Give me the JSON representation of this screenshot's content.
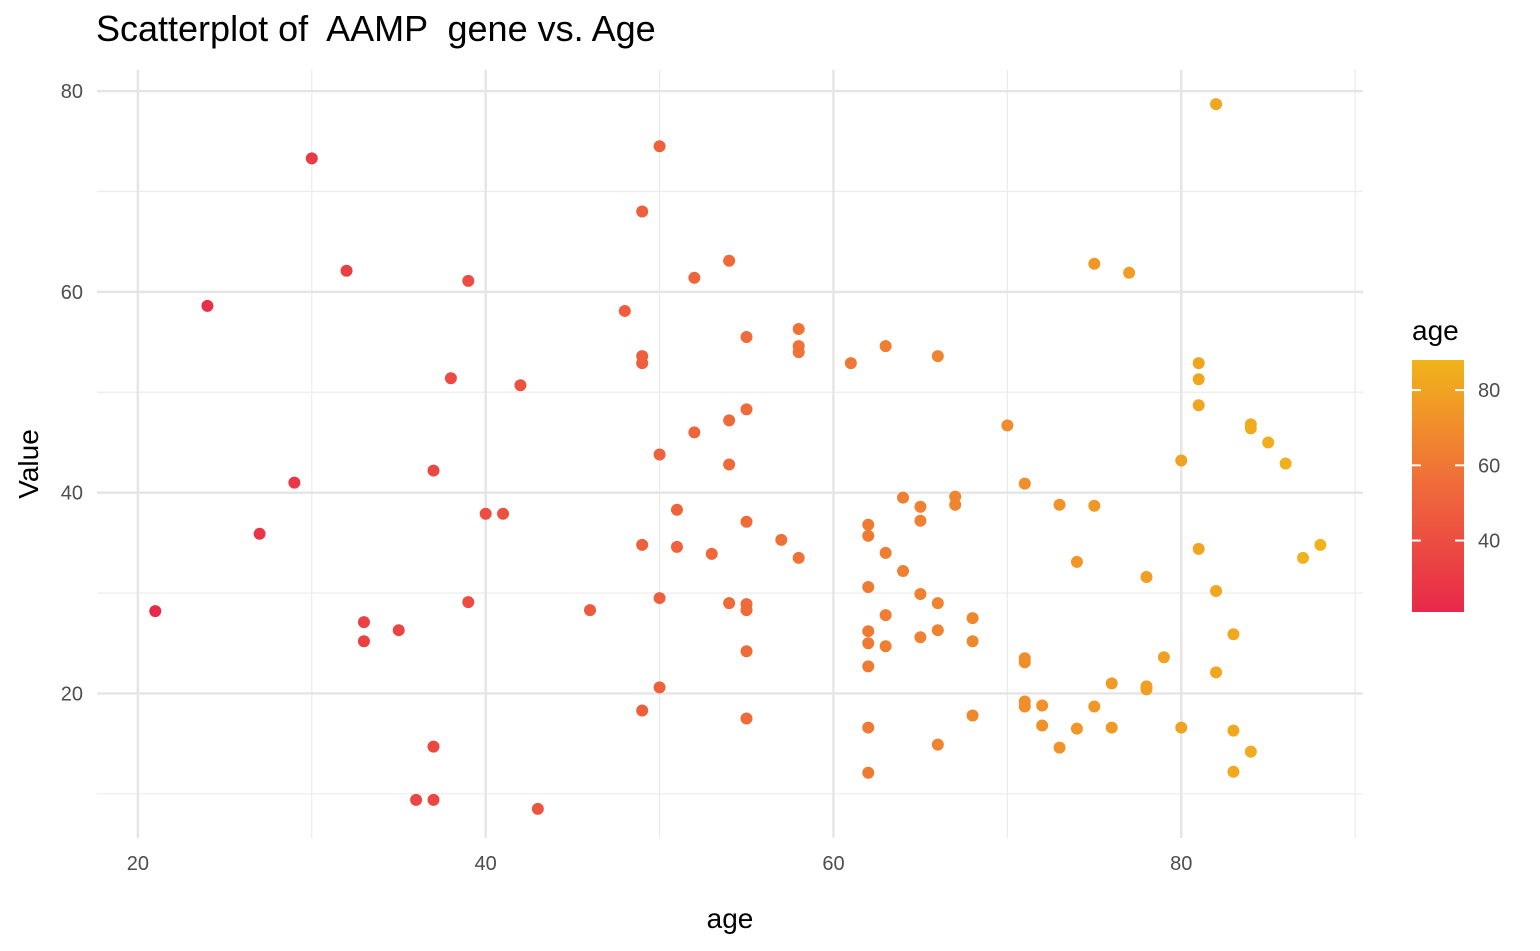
{
  "chart_data": {
    "type": "scatter",
    "title": "Scatterplot of  AAMP  gene vs. Age",
    "xlabel": "age",
    "ylabel": "Value",
    "xlim": [
      17.65,
      90.45
    ],
    "ylim": [
      5.6,
      82.1
    ],
    "x_ticks": [
      20,
      40,
      60,
      80
    ],
    "y_ticks": [
      20,
      40,
      60,
      80
    ],
    "x_minor": [
      30,
      50,
      70,
      90
    ],
    "y_minor": [
      10,
      30,
      50,
      70
    ],
    "grid": true,
    "legend": {
      "title": "age",
      "position": "right",
      "ticks": [
        40,
        60,
        80
      ],
      "range": [
        21,
        88
      ],
      "color_low": "#e8294a",
      "color_high": "#f0b41a"
    },
    "points": [
      {
        "x": 21,
        "y": 28.2
      },
      {
        "x": 24,
        "y": 58.6
      },
      {
        "x": 27,
        "y": 35.9
      },
      {
        "x": 29,
        "y": 41.0
      },
      {
        "x": 30,
        "y": 73.3
      },
      {
        "x": 32,
        "y": 62.1
      },
      {
        "x": 33,
        "y": 27.1
      },
      {
        "x": 33,
        "y": 25.2
      },
      {
        "x": 35,
        "y": 26.3
      },
      {
        "x": 36,
        "y": 9.4
      },
      {
        "x": 37,
        "y": 9.4
      },
      {
        "x": 37,
        "y": 14.7
      },
      {
        "x": 37,
        "y": 42.2
      },
      {
        "x": 38,
        "y": 51.4
      },
      {
        "x": 39,
        "y": 61.1
      },
      {
        "x": 39,
        "y": 29.1
      },
      {
        "x": 40,
        "y": 37.9
      },
      {
        "x": 41,
        "y": 37.9
      },
      {
        "x": 42,
        "y": 50.7
      },
      {
        "x": 43,
        "y": 8.5
      },
      {
        "x": 46,
        "y": 28.3
      },
      {
        "x": 48,
        "y": 58.1
      },
      {
        "x": 49,
        "y": 68.0
      },
      {
        "x": 49,
        "y": 53.6
      },
      {
        "x": 49,
        "y": 52.9
      },
      {
        "x": 49,
        "y": 34.8
      },
      {
        "x": 49,
        "y": 18.3
      },
      {
        "x": 50,
        "y": 74.5
      },
      {
        "x": 50,
        "y": 43.8
      },
      {
        "x": 50,
        "y": 29.5
      },
      {
        "x": 50,
        "y": 20.6
      },
      {
        "x": 51,
        "y": 38.3
      },
      {
        "x": 51,
        "y": 34.6
      },
      {
        "x": 52,
        "y": 61.4
      },
      {
        "x": 52,
        "y": 46.0
      },
      {
        "x": 53,
        "y": 33.9
      },
      {
        "x": 54,
        "y": 63.1
      },
      {
        "x": 54,
        "y": 47.2
      },
      {
        "x": 54,
        "y": 42.8
      },
      {
        "x": 54,
        "y": 29.0
      },
      {
        "x": 55,
        "y": 55.5
      },
      {
        "x": 55,
        "y": 48.3
      },
      {
        "x": 55,
        "y": 37.1
      },
      {
        "x": 55,
        "y": 28.9
      },
      {
        "x": 55,
        "y": 28.3
      },
      {
        "x": 55,
        "y": 24.2
      },
      {
        "x": 55,
        "y": 17.5
      },
      {
        "x": 57,
        "y": 35.3
      },
      {
        "x": 58,
        "y": 56.3
      },
      {
        "x": 58,
        "y": 54.6
      },
      {
        "x": 58,
        "y": 54.0
      },
      {
        "x": 58,
        "y": 33.5
      },
      {
        "x": 61,
        "y": 52.9
      },
      {
        "x": 62,
        "y": 36.8
      },
      {
        "x": 62,
        "y": 35.7
      },
      {
        "x": 62,
        "y": 30.6
      },
      {
        "x": 62,
        "y": 26.2
      },
      {
        "x": 62,
        "y": 25.0
      },
      {
        "x": 62,
        "y": 22.7
      },
      {
        "x": 62,
        "y": 16.6
      },
      {
        "x": 62,
        "y": 12.1
      },
      {
        "x": 63,
        "y": 54.6
      },
      {
        "x": 63,
        "y": 34.0
      },
      {
        "x": 63,
        "y": 27.8
      },
      {
        "x": 63,
        "y": 24.7
      },
      {
        "x": 64,
        "y": 39.5
      },
      {
        "x": 64,
        "y": 32.2
      },
      {
        "x": 65,
        "y": 38.6
      },
      {
        "x": 65,
        "y": 37.2
      },
      {
        "x": 65,
        "y": 29.9
      },
      {
        "x": 65,
        "y": 25.6
      },
      {
        "x": 66,
        "y": 53.6
      },
      {
        "x": 66,
        "y": 29.0
      },
      {
        "x": 66,
        "y": 26.3
      },
      {
        "x": 66,
        "y": 14.9
      },
      {
        "x": 67,
        "y": 39.6
      },
      {
        "x": 67,
        "y": 38.8
      },
      {
        "x": 68,
        "y": 27.5
      },
      {
        "x": 68,
        "y": 25.2
      },
      {
        "x": 68,
        "y": 17.8
      },
      {
        "x": 70,
        "y": 46.7
      },
      {
        "x": 71,
        "y": 40.9
      },
      {
        "x": 71,
        "y": 23.5
      },
      {
        "x": 71,
        "y": 23.1
      },
      {
        "x": 71,
        "y": 19.2
      },
      {
        "x": 71,
        "y": 18.7
      },
      {
        "x": 72,
        "y": 18.8
      },
      {
        "x": 72,
        "y": 16.8
      },
      {
        "x": 73,
        "y": 38.8
      },
      {
        "x": 73,
        "y": 14.6
      },
      {
        "x": 74,
        "y": 33.1
      },
      {
        "x": 74,
        "y": 16.5
      },
      {
        "x": 75,
        "y": 62.8
      },
      {
        "x": 75,
        "y": 38.7
      },
      {
        "x": 75,
        "y": 18.7
      },
      {
        "x": 76,
        "y": 21.0
      },
      {
        "x": 76,
        "y": 16.6
      },
      {
        "x": 77,
        "y": 61.9
      },
      {
        "x": 78,
        "y": 31.6
      },
      {
        "x": 78,
        "y": 20.7
      },
      {
        "x": 78,
        "y": 20.4
      },
      {
        "x": 79,
        "y": 23.6
      },
      {
        "x": 80,
        "y": 43.2
      },
      {
        "x": 80,
        "y": 16.6
      },
      {
        "x": 81,
        "y": 52.9
      },
      {
        "x": 81,
        "y": 51.3
      },
      {
        "x": 81,
        "y": 48.7
      },
      {
        "x": 81,
        "y": 34.4
      },
      {
        "x": 82,
        "y": 78.7
      },
      {
        "x": 82,
        "y": 30.2
      },
      {
        "x": 82,
        "y": 22.1
      },
      {
        "x": 83,
        "y": 25.9
      },
      {
        "x": 83,
        "y": 16.3
      },
      {
        "x": 83,
        "y": 12.2
      },
      {
        "x": 84,
        "y": 46.8
      },
      {
        "x": 84,
        "y": 46.4
      },
      {
        "x": 84,
        "y": 14.2
      },
      {
        "x": 85,
        "y": 45.0
      },
      {
        "x": 86,
        "y": 42.9
      },
      {
        "x": 87,
        "y": 33.5
      },
      {
        "x": 88,
        "y": 34.8
      }
    ]
  }
}
